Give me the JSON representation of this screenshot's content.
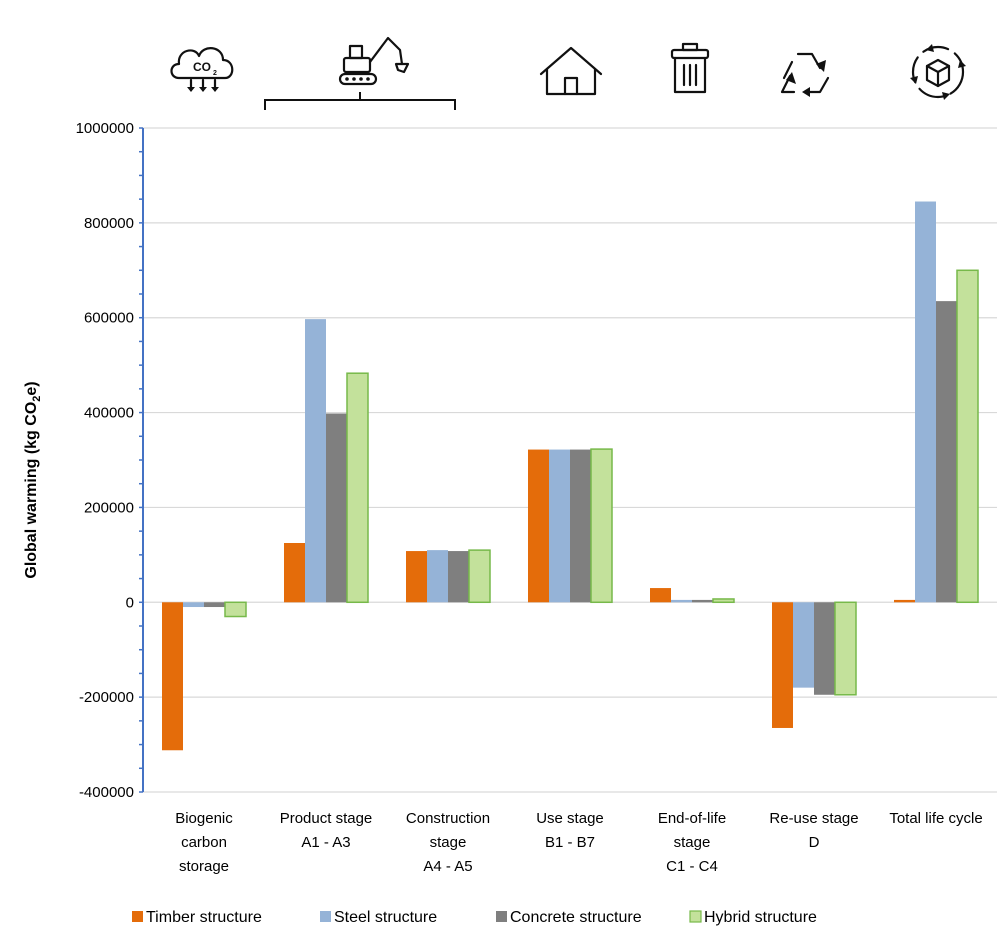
{
  "chart_data": {
    "type": "bar",
    "ylabel_main": "Global warming (kg CO",
    "ylabel_sub": "2",
    "ylabel_end": "e)",
    "ylim": [
      -400000,
      1000000
    ],
    "yticks": [
      "1000000",
      "800000",
      "600000",
      "400000",
      "200000",
      "0",
      "-200000",
      "-400000"
    ],
    "grid": true,
    "legend_position": "bottom",
    "categories": [
      {
        "lines": [
          "Biogenic",
          "carbon",
          "storage"
        ],
        "icon": "co2-cloud-icon"
      },
      {
        "lines": [
          "Product stage",
          "A1 - A3"
        ],
        "icon": "excavator-icon"
      },
      {
        "lines": [
          "Construction",
          "stage",
          "A4 - A5"
        ],
        "icon": ""
      },
      {
        "lines": [
          "Use stage",
          "B1 - B7"
        ],
        "icon": "house-icon"
      },
      {
        "lines": [
          "End-of-life",
          "stage",
          "C1 - C4"
        ],
        "icon": "trash-bin-icon"
      },
      {
        "lines": [
          "Re-use stage",
          "D"
        ],
        "icon": "recycle-icon"
      },
      {
        "lines": [
          "Total life cycle"
        ],
        "icon": "lifecycle-box-icon"
      }
    ],
    "series": [
      {
        "name": "Timber structure",
        "color": "#E46C0A",
        "values": [
          -312000,
          125000,
          108000,
          322000,
          30000,
          -265000,
          5000
        ]
      },
      {
        "name": "Steel structure",
        "color": "#95B3D7",
        "values": [
          -10000,
          597000,
          110000,
          322000,
          5000,
          -180000,
          845000
        ]
      },
      {
        "name": "Concrete structure",
        "color": "#7F7F7F",
        "values": [
          -10000,
          398000,
          108000,
          322000,
          5000,
          -195000,
          635000
        ]
      },
      {
        "name": "Hybrid structure",
        "color": "#C3E19B",
        "stroke": "#77B94A",
        "values": [
          -30000,
          483000,
          110000,
          323000,
          7000,
          -195000,
          700000
        ]
      }
    ]
  }
}
